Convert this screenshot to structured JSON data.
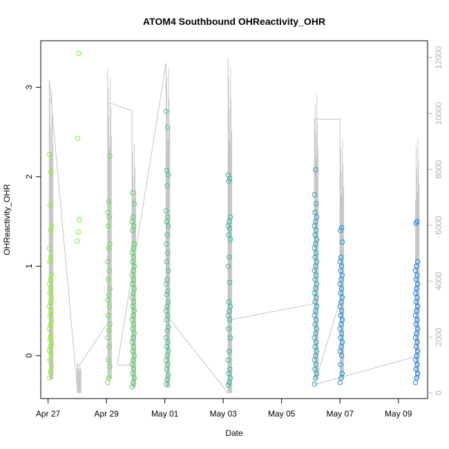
{
  "chart_data": {
    "type": "scatter",
    "title": "ATOM4 Southbound OHReactivity_OHR",
    "xlabel": "Date",
    "ylabel": "OHReactivity_OHR",
    "x_ticks": [
      "Apr 27",
      "Apr 29",
      "May 01",
      "May 03",
      "May 05",
      "May 07",
      "May 09"
    ],
    "y_ticks": [
      "0",
      "1",
      "2",
      "3"
    ],
    "y2_ticks": [
      "0",
      "2000",
      "4000",
      "6000",
      "8000",
      "10000",
      "12000"
    ],
    "xlim": [
      "2016-04-26T18:00",
      "2016-05-10T00:00"
    ],
    "ylim": [
      -0.48,
      3.52
    ],
    "y2lim": [
      -200,
      12600
    ],
    "colors": {
      "points_start": "#80ff00",
      "points_end": "#0080ff",
      "secondary_line": "#bebebe"
    },
    "series": [
      {
        "role": "OHReactivity_OHR points",
        "clusters": [
          {
            "date": "2016-04-27T01:00",
            "values": [
              -0.25,
              -0.18,
              -0.12,
              -0.05,
              0.02,
              0.06,
              0.1,
              0.14,
              0.18,
              0.22,
              0.3,
              0.35,
              0.4,
              0.45,
              0.5,
              0.55,
              0.6,
              0.65,
              0.7,
              0.75,
              0.8,
              0.85,
              0.9,
              1.05,
              1.1,
              1.2,
              1.4,
              1.45,
              1.68,
              2.05,
              2.25
            ]
          },
          {
            "date": "2016-04-28T00:00",
            "values": [
              1.28,
              1.38,
              1.52,
              2.43,
              3.38
            ]
          },
          {
            "date": "2016-04-29T01:00",
            "values": [
              -0.3,
              -0.25,
              -0.12,
              -0.05,
              0.1,
              0.2,
              0.28,
              0.35,
              0.45,
              0.55,
              0.62,
              0.68,
              0.75,
              0.85,
              0.95,
              1.05,
              1.2,
              1.25,
              1.45,
              1.55,
              1.6,
              1.72,
              2.23
            ]
          },
          {
            "date": "2016-04-29T21:00",
            "values": [
              -0.35,
              -0.3,
              -0.25,
              -0.2,
              -0.15,
              -0.1,
              -0.05,
              0,
              0.05,
              0.1,
              0.15,
              0.2,
              0.25,
              0.3,
              0.35,
              0.4,
              0.45,
              0.5,
              0.55,
              0.6,
              0.65,
              0.7,
              0.75,
              0.8,
              0.85,
              0.9,
              0.95,
              1,
              1.05,
              1.1,
              1.15,
              1.2,
              1.25,
              1.4,
              1.45,
              1.5,
              1.55,
              1.7,
              1.82
            ]
          },
          {
            "date": "2016-05-01T01:00",
            "values": [
              -0.32,
              -0.27,
              -0.22,
              -0.15,
              -0.1,
              -0.05,
              0,
              0.05,
              0.1,
              0.15,
              0.2,
              0.28,
              0.32,
              0.4,
              0.45,
              0.5,
              0.55,
              0.6,
              0.68,
              0.72,
              0.8,
              0.85,
              0.95,
              1.05,
              1.15,
              1.25,
              1.35,
              1.45,
              1.5,
              1.55,
              1.62,
              1.9,
              2.02,
              2.07,
              2.55,
              2.73
            ]
          },
          {
            "date": "2016-05-03T04:00",
            "values": [
              -0.33,
              -0.3,
              -0.25,
              -0.2,
              -0.15,
              -0.05,
              0.05,
              0.2,
              0.3,
              0.4,
              0.45,
              0.5,
              0.55,
              0.6,
              0.82,
              1,
              1.1,
              1.3,
              1.35,
              1.42,
              1.45,
              1.5,
              1.55,
              1.95,
              1.98,
              2.02
            ]
          },
          {
            "date": "2016-05-06T03:00",
            "values": [
              -0.32,
              -0.25,
              -0.2,
              -0.15,
              -0.1,
              -0.05,
              0,
              0.05,
              0.1,
              0.15,
              0.2,
              0.25,
              0.3,
              0.35,
              0.4,
              0.45,
              0.5,
              0.55,
              0.6,
              0.65,
              0.7,
              0.75,
              0.8,
              0.85,
              0.9,
              0.95,
              1,
              1.05,
              1.1,
              1.15,
              1.2,
              1.25,
              1.3,
              1.35,
              1.4,
              1.45,
              1.5,
              1.55,
              1.6,
              1.7,
              1.8,
              2.08
            ]
          },
          {
            "date": "2016-05-07T00:00",
            "values": [
              -0.3,
              -0.25,
              -0.2,
              -0.1,
              0,
              0.05,
              0.1,
              0.15,
              0.2,
              0.25,
              0.3,
              0.35,
              0.4,
              0.45,
              0.5,
              0.55,
              0.6,
              0.65,
              0.7,
              0.75,
              0.8,
              0.85,
              0.9,
              0.95,
              1,
              1.05,
              1.1,
              1.27,
              1.4,
              1.43
            ]
          },
          {
            "date": "2016-05-09T14:00",
            "values": [
              -0.3,
              -0.25,
              -0.2,
              -0.15,
              -0.1,
              -0.05,
              0,
              0.05,
              0.1,
              0.15,
              0.2,
              0.25,
              0.3,
              0.35,
              0.4,
              0.45,
              0.5,
              0.55,
              0.6,
              0.65,
              0.7,
              0.75,
              0.8,
              0.85,
              0.9,
              0.95,
              1,
              1.05,
              1.48,
              1.5
            ]
          }
        ]
      },
      {
        "role": "secondary right-axis line",
        "right_axis": true,
        "overview_path": [
          {
            "date": "2016-04-27T01:00",
            "v": 1100
          },
          {
            "date": "2016-04-27T01:00",
            "v": 11200
          },
          {
            "date": "2016-04-28T00:00",
            "v": 200
          },
          {
            "date": "2016-04-28T00:00",
            "v": 1050
          },
          {
            "date": "2016-04-28T02:00",
            "v": 1000
          },
          {
            "date": "2016-04-29T01:00",
            "v": 2500
          },
          {
            "date": "2016-04-29T01:00",
            "v": 11600
          },
          {
            "date": "2016-04-29T01:00",
            "v": 10400
          },
          {
            "date": "2016-04-29T21:00",
            "v": 10100
          },
          {
            "date": "2016-04-29T21:00",
            "v": 1000
          },
          {
            "date": "2016-04-29T09:00",
            "v": 1000
          },
          {
            "date": "2016-05-01T01:00",
            "v": 11800
          },
          {
            "date": "2016-05-01T01:00",
            "v": 2800
          },
          {
            "date": "2016-05-03T04:00",
            "v": 0
          },
          {
            "date": "2016-05-03T04:00",
            "v": 12000
          },
          {
            "date": "2016-05-03T04:00",
            "v": 2600
          },
          {
            "date": "2016-05-06T03:00",
            "v": 3200
          },
          {
            "date": "2016-05-06T03:00",
            "v": 9800
          },
          {
            "date": "2016-05-07T00:00",
            "v": 9800
          },
          {
            "date": "2016-05-07T00:00",
            "v": 3300
          },
          {
            "date": "2016-05-06T03:00",
            "v": 300
          },
          {
            "date": "2016-05-09T14:00",
            "v": 1300
          }
        ],
        "spikes": [
          {
            "date": "2016-04-27T01:00",
            "lo": 500,
            "hi": 11200
          },
          {
            "date": "2016-04-28T00:00",
            "lo": 0,
            "hi": 1050
          },
          {
            "date": "2016-04-29T01:00",
            "lo": 500,
            "hi": 11600
          },
          {
            "date": "2016-04-29T21:00",
            "lo": 200,
            "hi": 9200
          },
          {
            "date": "2016-05-01T01:00",
            "lo": 200,
            "hi": 12000
          },
          {
            "date": "2016-05-03T04:00",
            "lo": 0,
            "hi": 12000
          },
          {
            "date": "2016-05-06T03:00",
            "lo": 500,
            "hi": 11000
          },
          {
            "date": "2016-05-07T00:00",
            "lo": 500,
            "hi": 9300
          },
          {
            "date": "2016-05-09T14:00",
            "lo": 500,
            "hi": 9400
          }
        ]
      }
    ]
  }
}
